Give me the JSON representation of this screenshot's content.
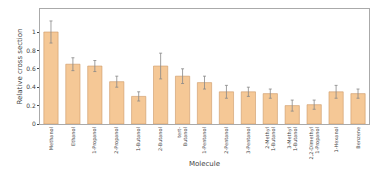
{
  "chart_data": {
    "type": "bar",
    "categories": [
      "Methanol",
      "Ethanol",
      "1-Propanol",
      "2-Propanol",
      "1-Butanol",
      "2-Butanol",
      "tert-\nButanol",
      "1-Pentanol",
      "2-Pentanol",
      "3-Pentanol",
      "2-Methyl\n1-Butanol",
      "3-Methyl\n1-Butanol",
      "2,2-Dimethyl\n1-Propanol",
      "1-Hexanol",
      "Benzene"
    ],
    "values": [
      1.0,
      0.65,
      0.63,
      0.46,
      0.3,
      0.63,
      0.52,
      0.45,
      0.35,
      0.35,
      0.33,
      0.2,
      0.21,
      0.35,
      0.33
    ],
    "errors": [
      0.12,
      0.07,
      0.06,
      0.06,
      0.05,
      0.14,
      0.08,
      0.07,
      0.07,
      0.05,
      0.05,
      0.06,
      0.05,
      0.07,
      0.05
    ],
    "color": "#f5c896",
    "xlabel": "Molecule",
    "ylabel": "Relative cross section",
    "ylim": [
      0.0,
      1.25
    ],
    "yticks": [
      0.0,
      0.2,
      0.4,
      0.6,
      0.8,
      1.0
    ],
    "grid": false
  }
}
